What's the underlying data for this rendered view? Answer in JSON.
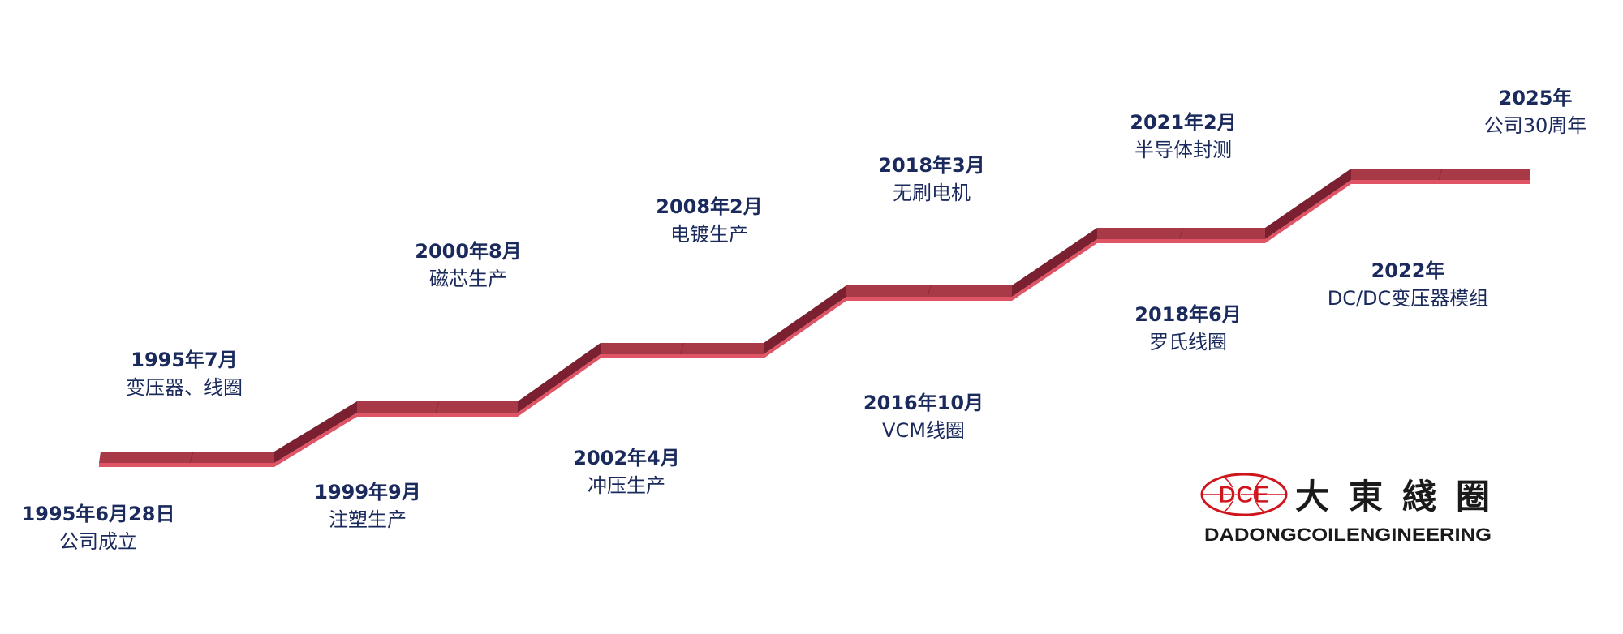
{
  "colors": {
    "ribbon_top": "#a83a48",
    "ribbon_edge": "#e05566",
    "ribbon_side": "#7a2030",
    "text": "#1b2a5c",
    "logo_red": "#d0141c"
  },
  "events": [
    {
      "date": "1995年6月28日",
      "text": "公司成立"
    },
    {
      "date": "1995年7月",
      "text": "变压器、线圈"
    },
    {
      "date": "1999年9月",
      "text": "注塑生产"
    },
    {
      "date": "2000年8月",
      "text": "磁芯生产"
    },
    {
      "date": "2002年4月",
      "text": "冲压生产"
    },
    {
      "date": "2008年2月",
      "text": "电镀生产"
    },
    {
      "date": "2016年10月",
      "text": "VCM线圈"
    },
    {
      "date": "2018年3月",
      "text": "无刷电机"
    },
    {
      "date": "2018年6月",
      "text": "罗氏线圈"
    },
    {
      "date": "2021年2月",
      "text": "半导体封测"
    },
    {
      "date": "2022年",
      "text": "DC/DC变压器模组"
    },
    {
      "date": "2025年",
      "text": "公司30周年"
    }
  ],
  "logo": {
    "mark": "DCE",
    "chinese": "大東綫圈",
    "english": "DADONGCOILENGINEERING"
  }
}
